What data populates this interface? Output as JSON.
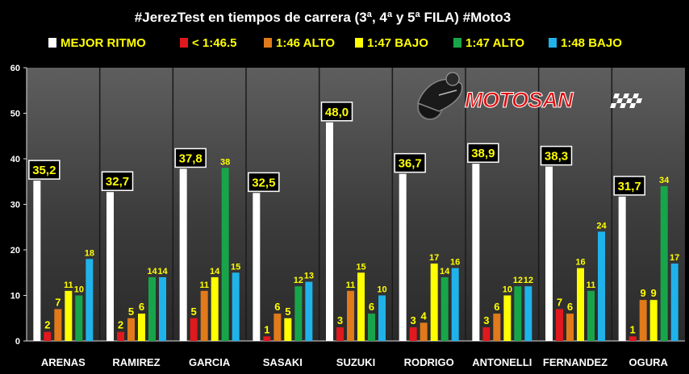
{
  "title": "#JerezTest en tiempos de carrera (3ª, 4ª y 5ª FILA) #Moto3",
  "logo_text": "MOTOSAN",
  "chart_data": {
    "type": "bar",
    "ylim": [
      0,
      60
    ],
    "yticks": [
      0,
      10,
      20,
      30,
      40,
      50,
      60
    ],
    "grid": false,
    "legend_position": "top",
    "categories": [
      "ARENAS",
      "RAMIREZ",
      "GARCIA",
      "SASAKI",
      "SUZUKI",
      "RODRIGO",
      "ANTONELLI",
      "FERNANDEZ",
      "OGURA"
    ],
    "series": [
      {
        "name": "MEJOR RITMO",
        "color": "#ffffff",
        "values": [
          35.2,
          32.7,
          37.8,
          32.5,
          48.0,
          36.7,
          38.9,
          38.3,
          31.7
        ],
        "labels": [
          "35,2",
          "32,7",
          "37,8",
          "32,5",
          "48,0",
          "36,7",
          "38,9",
          "38,3",
          "31,7"
        ]
      },
      {
        "name": "< 1:46.5",
        "color": "#e0191e",
        "values": [
          2,
          2,
          5,
          1,
          3,
          3,
          3,
          7,
          1
        ],
        "labels": [
          "2",
          "2",
          "5",
          "1",
          "3",
          "3",
          "3",
          "7",
          "1"
        ]
      },
      {
        "name": "1:46 ALTO",
        "color": "#e07a1a",
        "values": [
          7,
          5,
          11,
          6,
          11,
          4,
          6,
          6,
          9
        ],
        "labels": [
          "7",
          "5",
          "11",
          "6",
          "11",
          "4",
          "6",
          "6",
          "9"
        ]
      },
      {
        "name": "1:47 BAJO",
        "color": "#ffff00",
        "values": [
          11,
          6,
          14,
          5,
          15,
          17,
          10,
          16,
          9
        ],
        "labels": [
          "11",
          "6",
          "14",
          "5",
          "15",
          "17",
          "10",
          "16",
          "9"
        ]
      },
      {
        "name": "1:47 ALTO",
        "color": "#18a54a",
        "values": [
          10,
          14,
          38,
          12,
          6,
          14,
          12,
          11,
          34
        ],
        "labels": [
          "10",
          "14",
          "38",
          "12",
          "6",
          "14",
          "12",
          "11",
          "34"
        ]
      },
      {
        "name": "1:48 BAJO",
        "color": "#1fb3ea",
        "values": [
          18,
          14,
          15,
          13,
          10,
          16,
          12,
          24,
          17
        ],
        "labels": [
          "18",
          "14",
          "15",
          "13",
          "10",
          "16",
          "12",
          "24",
          "17"
        ]
      }
    ]
  }
}
